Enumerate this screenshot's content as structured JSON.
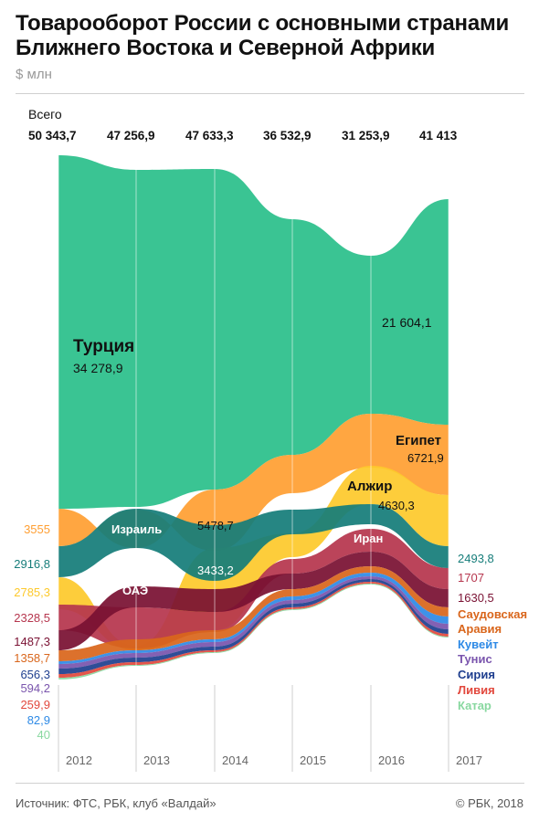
{
  "header": {
    "title": "Товарооборот России с основными странами Ближнего Востока и Северной Африки",
    "unit": "$ млн"
  },
  "footer": {
    "source": "Источник: ФТС, РБК, клуб «Валдай»",
    "copyright": "© РБК, 2018"
  },
  "chart_data": {
    "type": "area",
    "title": "Товарооборот России с основными странами Ближнего Востока и Северной Африки",
    "ylabel": "$ млн",
    "years": [
      "2012",
      "2013",
      "2014",
      "2015",
      "2016",
      "2017"
    ],
    "totals_label": "Всего",
    "totals": [
      "50 343,7",
      "47 256,9",
      "47 633,3",
      "36 532,9",
      "31 253,9",
      "41 413"
    ],
    "series": [
      {
        "name": "Турция",
        "color": "#2bbf8b"
      },
      {
        "name": "Египет",
        "color": "#ff9f33"
      },
      {
        "name": "Алжир",
        "color": "#fdc92c"
      },
      {
        "name": "Израиль",
        "color": "#167d7a"
      },
      {
        "name": "Иран",
        "color": "#b6364e"
      },
      {
        "name": "ОАЭ",
        "color": "#7a1133"
      },
      {
        "name": "Саудовская Аравия",
        "color": "#d9661c"
      },
      {
        "name": "Кувейт",
        "color": "#2e8ae6"
      },
      {
        "name": "Тунис",
        "color": "#7a55ad"
      },
      {
        "name": "Сирия",
        "color": "#1f3f8f"
      },
      {
        "name": "Ливия",
        "color": "#e2483d"
      },
      {
        "name": "Катар",
        "color": "#89d8a0"
      }
    ],
    "inline_labels": [
      {
        "series": "Турция",
        "name": "Турция",
        "value": "34 278,9"
      },
      {
        "series": "Турция",
        "value": "21 604,1"
      },
      {
        "series": "Египет",
        "name": "Египет",
        "value": "6721,9"
      },
      {
        "series": "Алжир",
        "name": "Алжир",
        "value": "4630,3"
      },
      {
        "series": "Израиль",
        "name": "Израиль"
      },
      {
        "series": "Египет",
        "value": "5478,7"
      },
      {
        "series": "Израиль",
        "value": "3433,2"
      },
      {
        "series": "ОАЭ",
        "name": "ОАЭ"
      },
      {
        "series": "Иран",
        "name": "Иран"
      }
    ],
    "left_values_2012": [
      {
        "value": "3555",
        "color": "#ff9f33"
      },
      {
        "value": "2916,8",
        "color": "#167d7a"
      },
      {
        "value": "2785,3",
        "color": "#fdc92c"
      },
      {
        "value": "2328,5",
        "color": "#b6364e"
      },
      {
        "value": "1487,3",
        "color": "#7a1133"
      },
      {
        "value": "1358,7",
        "color": "#d9661c"
      },
      {
        "value": "656,3",
        "color": "#1f3f8f"
      },
      {
        "value": "594,2",
        "color": "#7a55ad"
      },
      {
        "value": "259,9",
        "color": "#e2483d"
      },
      {
        "value": "82,9",
        "color": "#2e8ae6"
      },
      {
        "value": "40",
        "color": "#89d8a0"
      }
    ],
    "right_values_2017": [
      {
        "value": "2493,8",
        "color": "#167d7a"
      },
      {
        "value": "1707",
        "color": "#b6364e"
      },
      {
        "value": "1630,5",
        "color": "#7a1133"
      }
    ],
    "right_legend": [
      {
        "label": "Саудовская",
        "color": "#d9661c"
      },
      {
        "label": "Аравия",
        "color": "#d9661c"
      },
      {
        "label": "Кувейт",
        "color": "#2e8ae6"
      },
      {
        "label": "Тунис",
        "color": "#7a55ad"
      },
      {
        "label": "Сирия",
        "color": "#1f3f8f"
      },
      {
        "label": "Ливия",
        "color": "#e2483d"
      },
      {
        "label": "Катар",
        "color": "#89d8a0"
      }
    ]
  }
}
